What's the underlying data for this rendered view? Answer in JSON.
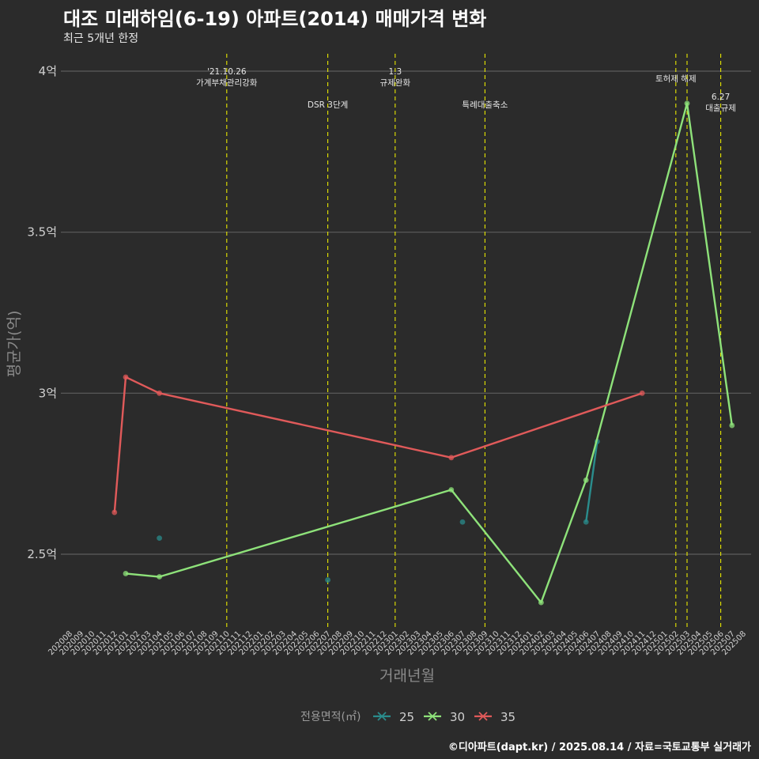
{
  "header": {
    "title": "대조 미래하임(6-19) 아파트(2014) 매매가격 변화",
    "subtitle": "최근 5개년 한정"
  },
  "caption": "©디아파트(dapt.kr) / 2025.08.14 / 자료=국토교통부 실거래가",
  "chart_data": {
    "type": "line",
    "xlabel": "거래년월",
    "ylabel": "평균가(억)",
    "x_ticks": [
      "202008",
      "202009",
      "202010",
      "202011",
      "202012",
      "202101",
      "202102",
      "202103",
      "202104",
      "202105",
      "202106",
      "202107",
      "202108",
      "202109",
      "202110",
      "202111",
      "202112",
      "202201",
      "202202",
      "202203",
      "202204",
      "202205",
      "202206",
      "202207",
      "202208",
      "202209",
      "202210",
      "202211",
      "202212",
      "202301",
      "202302",
      "202303",
      "202304",
      "202305",
      "202306",
      "202307",
      "202308",
      "202309",
      "202310",
      "202311",
      "202312",
      "202401",
      "202402",
      "202403",
      "202404",
      "202405",
      "202406",
      "202407",
      "202408",
      "202409",
      "202410",
      "202411",
      "202412",
      "202501",
      "202502",
      "202503",
      "202504",
      "202505",
      "202506",
      "202507",
      "202508"
    ],
    "y_ticks": [
      {
        "value": 2.5,
        "label": "2.5억"
      },
      {
        "value": 3.0,
        "label": "3억"
      },
      {
        "value": 3.5,
        "label": "3.5억"
      },
      {
        "value": 4.0,
        "label": "4억"
      }
    ],
    "ylim": [
      2.3,
      4.05
    ],
    "grid": true,
    "legend_title": "전용면적(㎡)",
    "legend_position": "bottom",
    "series": [
      {
        "name": "25",
        "color": "#2a8c8c",
        "points": [
          [
            "202104",
            2.55
          ],
          [
            "202207",
            2.42
          ],
          [
            "202307",
            2.6
          ],
          [
            "202406",
            2.6
          ],
          [
            "202407",
            2.85
          ]
        ],
        "lines": [
          [
            "202406",
            "202407"
          ]
        ]
      },
      {
        "name": "30",
        "color": "#8ee27a",
        "points": [
          [
            "202101",
            2.44
          ],
          [
            "202104",
            2.43
          ],
          [
            "202306",
            2.7
          ],
          [
            "202402",
            2.35
          ],
          [
            "202406",
            2.73
          ],
          [
            "202503",
            3.9
          ],
          [
            "202507",
            2.9
          ]
        ],
        "lines": [
          [
            "202101",
            "202104",
            "202306",
            "202402",
            "202406",
            "202503",
            "202507"
          ]
        ]
      },
      {
        "name": "35",
        "color": "#e05a5a",
        "points": [
          [
            "202012",
            2.63
          ],
          [
            "202101",
            3.05
          ],
          [
            "202104",
            3.0
          ],
          [
            "202306",
            2.8
          ],
          [
            "202411",
            3.0
          ]
        ],
        "lines": [
          [
            "202012",
            "202101",
            "202104",
            "202306",
            "202411"
          ]
        ]
      }
    ],
    "annotations": [
      {
        "x": "202110",
        "lines": [
          "'21.10.26",
          "가계부채관리강화"
        ],
        "level": "top"
      },
      {
        "x": "202207",
        "lines": [
          "DSR 3단계"
        ],
        "level": "mid"
      },
      {
        "x": "202301",
        "lines": [
          "1.3",
          "규제완화"
        ],
        "level": "top"
      },
      {
        "x": "202309",
        "lines": [
          "특례대출축소"
        ],
        "level": "mid"
      },
      {
        "x": "202502",
        "lines": [
          "토허제 해제"
        ],
        "level": "high"
      },
      {
        "x": "202503",
        "lines": [],
        "level": "none"
      },
      {
        "x": "202506",
        "lines": [
          "6.27",
          "대출규제"
        ],
        "level": "low"
      }
    ]
  }
}
